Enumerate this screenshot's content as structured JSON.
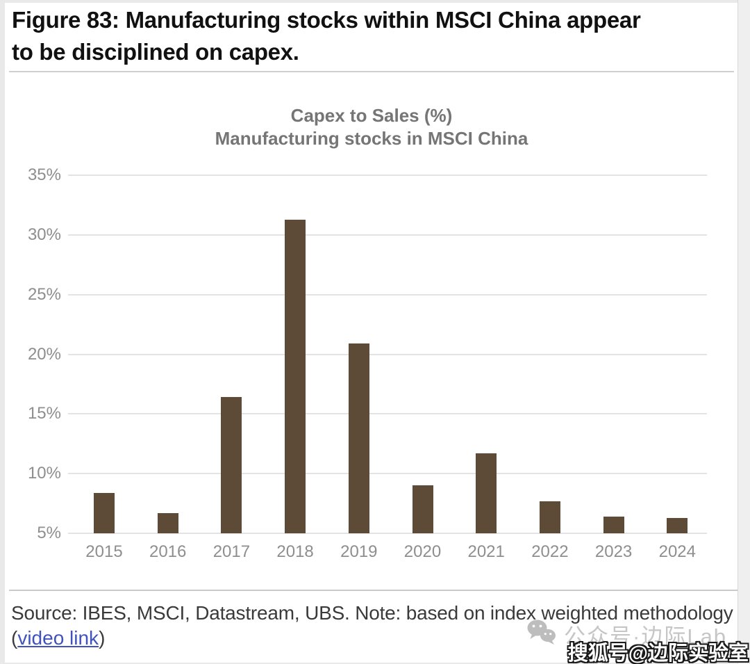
{
  "figure": {
    "title_lines": [
      "Figure 83: Manufacturing stocks within MSCI China appear",
      "to be disciplined on capex."
    ]
  },
  "chart_data": {
    "type": "bar",
    "title": "Capex to Sales (%) — Manufacturing stocks in MSCI China",
    "title_lines": [
      "Capex to Sales (%)",
      "Manufacturing stocks in MSCI China"
    ],
    "categories": [
      "2015",
      "2016",
      "2017",
      "2018",
      "2019",
      "2020",
      "2021",
      "2022",
      "2023",
      "2024"
    ],
    "values": [
      8.4,
      6.7,
      16.4,
      31.3,
      20.9,
      9.0,
      11.7,
      7.7,
      6.4,
      6.3
    ],
    "xlabel": "",
    "ylabel": "Capex to Sales (%)",
    "ylim": [
      5,
      35
    ],
    "ytick_step": 5,
    "ytick_suffix": "%",
    "grid": true,
    "legend": null,
    "bar_color": "#5d4a37",
    "grid_color": "#e3e3e3",
    "axis_label_color": "#8e8e8e"
  },
  "footer": {
    "source_text": "Source: IBES, MSCI, Datastream, UBS. Note: based on index weighted methodology",
    "link_prefix": "(",
    "link_label": "video link",
    "link_suffix": ")"
  },
  "watermarks": {
    "wechat_text": "公众号·边际Lab",
    "sohu_text": "搜狐号@边际实验室"
  }
}
